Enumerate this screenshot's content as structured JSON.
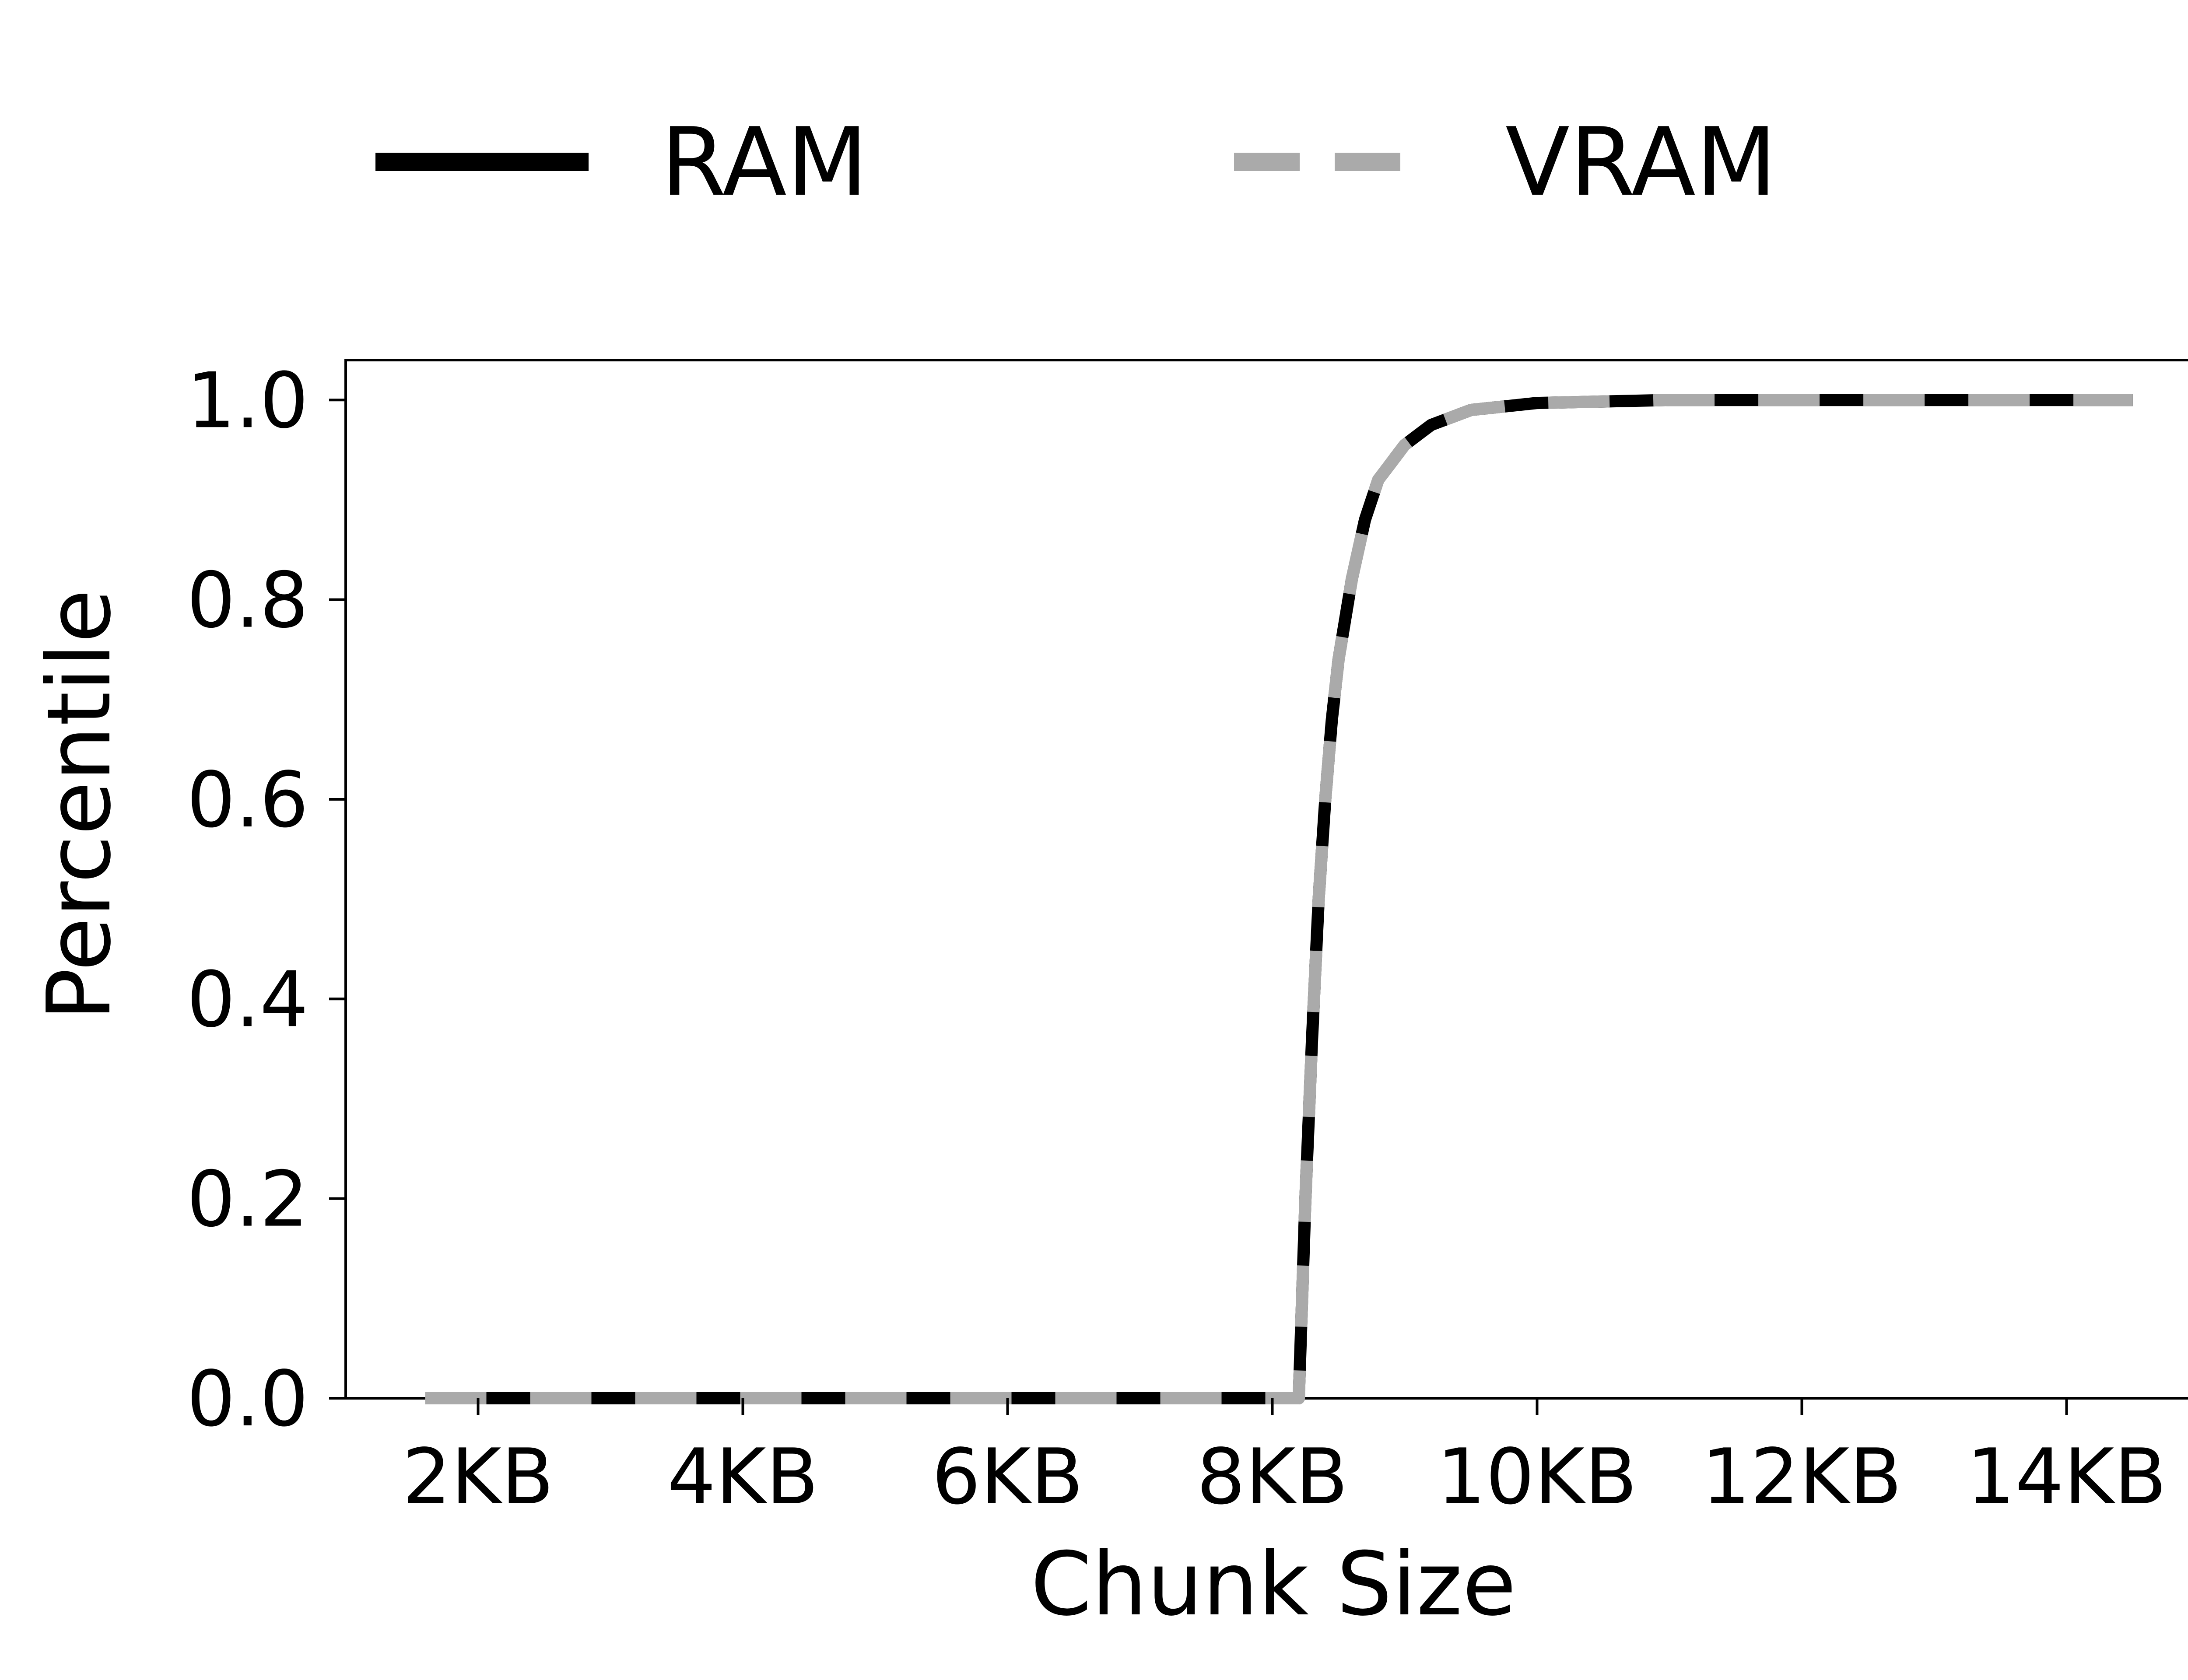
{
  "chart_data": {
    "type": "line",
    "title": "",
    "xlabel": "Chunk Size",
    "ylabel": "Percentile",
    "xlim": [
      1.0,
      15.0
    ],
    "ylim": [
      0.0,
      1.04
    ],
    "x_unit": "KB",
    "xticks": [
      2,
      4,
      6,
      8,
      10,
      12,
      14
    ],
    "xtick_labels": [
      "2KB",
      "4KB",
      "6KB",
      "8KB",
      "10KB",
      "12KB",
      "14KB"
    ],
    "yticks": [
      0.0,
      0.2,
      0.4,
      0.6,
      0.8,
      1.0
    ],
    "ytick_labels": [
      "0.0",
      "0.2",
      "0.4",
      "0.6",
      "0.8",
      "1.0"
    ],
    "grid": false,
    "legend_position": "top",
    "series": [
      {
        "name": "RAM",
        "color": "#000000",
        "style": "solid",
        "x": [
          1.6,
          8.1,
          8.2,
          8.25,
          8.3,
          8.35,
          8.4,
          8.45,
          8.5,
          8.6,
          8.7,
          8.8,
          9.0,
          9.2,
          9.5,
          10.0,
          11.0,
          14.5
        ],
        "y": [
          0.0,
          0.0,
          0.0,
          0.2,
          0.36,
          0.5,
          0.6,
          0.68,
          0.74,
          0.82,
          0.88,
          0.92,
          0.955,
          0.975,
          0.99,
          0.997,
          1.0,
          1.0
        ]
      },
      {
        "name": "VRAM",
        "color": "#aaaaaa",
        "style": "dashed",
        "x": [
          1.6,
          8.1,
          8.2,
          8.25,
          8.3,
          8.35,
          8.4,
          8.45,
          8.5,
          8.6,
          8.7,
          8.8,
          9.0,
          9.2,
          9.5,
          10.0,
          11.0,
          14.5
        ],
        "y": [
          0.0,
          0.0,
          0.0,
          0.2,
          0.36,
          0.5,
          0.6,
          0.68,
          0.74,
          0.82,
          0.88,
          0.92,
          0.955,
          0.975,
          0.99,
          0.997,
          1.0,
          1.0
        ]
      }
    ]
  }
}
